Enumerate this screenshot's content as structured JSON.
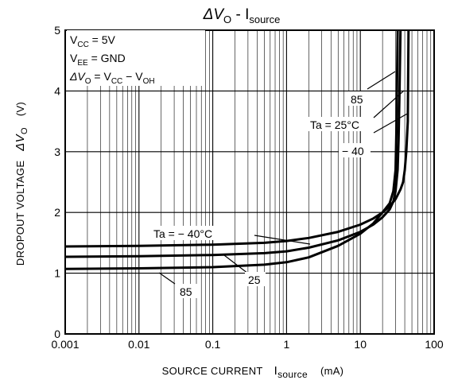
{
  "chart_data": {
    "type": "line",
    "title": {
      "main": "ΔV",
      "sub": "O",
      "sep": " - ",
      "main2": "I",
      "sub2": "source"
    },
    "xlabel": {
      "text": "SOURCE CURRENT",
      "sym": "I",
      "sub": "source",
      "unit": "(mA)"
    },
    "ylabel": {
      "text": "DROPOUT VOLTAGE",
      "sym": "ΔV",
      "sub": "O",
      "unit": "(V)"
    },
    "x_scale": "log",
    "xlim": [
      0.001,
      100
    ],
    "ylim": [
      0,
      5
    ],
    "x_ticks": [
      "0.001",
      "0.01",
      "0.1",
      "1",
      "10",
      "100"
    ],
    "y_ticks": [
      "0",
      "1",
      "2",
      "3",
      "4",
      "5"
    ],
    "grid": true,
    "conditions": [
      {
        "pre": "V",
        "sub": "CC",
        "post": " = 5V"
      },
      {
        "pre": "V",
        "sub": "EE",
        "post": " = GND"
      },
      {
        "pre": "ΔV",
        "sub": "O",
        "post": " = V",
        "sub2": "CC",
        "post2": " − V",
        "sub3": "OH"
      }
    ],
    "series": [
      {
        "name": "Ta = −40°C",
        "label": "Ta = −40°C",
        "x": [
          0.001,
          0.01,
          0.1,
          0.5,
          1,
          2,
          5,
          10,
          15,
          20,
          25,
          30,
          35,
          38,
          40,
          42,
          44,
          45
        ],
        "y": [
          1.44,
          1.45,
          1.47,
          1.5,
          1.53,
          1.58,
          1.68,
          1.8,
          1.9,
          2.0,
          2.1,
          2.22,
          2.38,
          2.5,
          2.7,
          3.0,
          3.5,
          5.0
        ]
      },
      {
        "name": "Ta = 25°C",
        "label": "25",
        "x": [
          0.001,
          0.01,
          0.1,
          0.5,
          1,
          2,
          5,
          10,
          15,
          20,
          25,
          28,
          30,
          32,
          33,
          34,
          35
        ],
        "y": [
          1.27,
          1.28,
          1.3,
          1.33,
          1.36,
          1.42,
          1.54,
          1.68,
          1.8,
          1.92,
          2.05,
          2.18,
          2.35,
          2.7,
          3.2,
          4.0,
          5.0
        ]
      },
      {
        "name": "Ta = 85°C",
        "label": "85",
        "x": [
          0.001,
          0.01,
          0.1,
          0.5,
          1,
          2,
          5,
          10,
          15,
          20,
          25,
          28,
          30,
          31,
          32
        ],
        "y": [
          1.07,
          1.08,
          1.1,
          1.14,
          1.18,
          1.26,
          1.45,
          1.65,
          1.82,
          2.0,
          2.15,
          2.35,
          2.7,
          3.5,
          5.0
        ]
      }
    ],
    "annotations": {
      "right_85": "85",
      "right_ta25": "Ta = 25°C",
      "right_m40": "− 40",
      "left_ta_m40": "Ta = − 40°C",
      "left_25": "25",
      "left_85": "85"
    }
  }
}
